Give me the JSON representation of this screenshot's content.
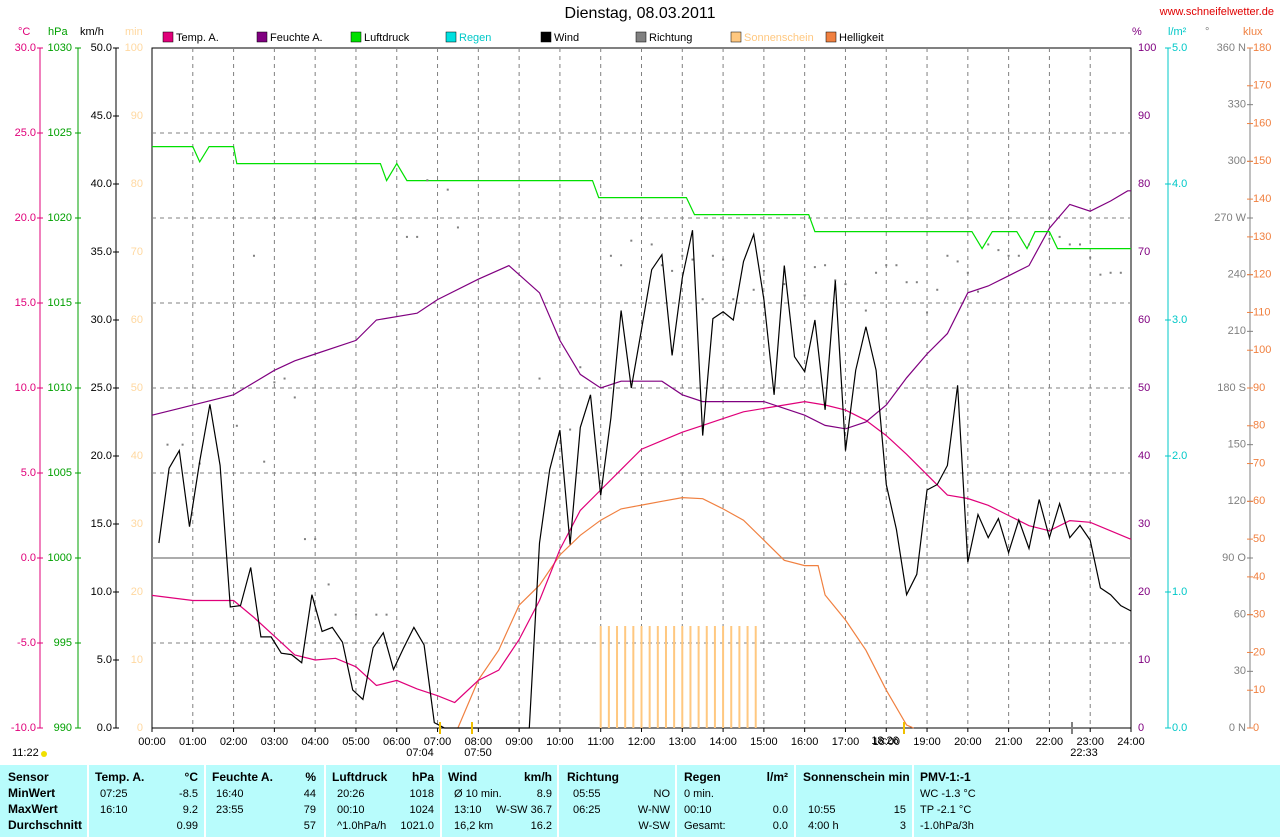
{
  "chart_data": {
    "type": "line",
    "title": "Dienstag, 08.03.2011",
    "source": "www.schneifelwetter.de",
    "time": "11:22",
    "annotations": [
      "07:04",
      "07:50",
      "18:26",
      "22:33"
    ],
    "grid": true,
    "xlim": [
      0,
      24
    ],
    "xticks": [
      {
        "value": 0,
        "label": "00:00"
      },
      {
        "value": 1,
        "label": "01:00"
      },
      {
        "value": 2,
        "label": "02:00"
      },
      {
        "value": 3,
        "label": "03:00"
      },
      {
        "value": 4,
        "label": "04:00"
      },
      {
        "value": 5,
        "label": "05:00"
      },
      {
        "value": 6,
        "label": "06:00"
      },
      {
        "value": 7,
        "label": "07:00"
      },
      {
        "value": 8,
        "label": "08:00"
      },
      {
        "value": 9,
        "label": "09:00"
      },
      {
        "value": 10,
        "label": "10:00"
      },
      {
        "value": 11,
        "label": "11:00"
      },
      {
        "value": 12,
        "label": "12:00"
      },
      {
        "value": 13,
        "label": "13:00"
      },
      {
        "value": 14,
        "label": "14:00"
      },
      {
        "value": 15,
        "label": "15:00"
      },
      {
        "value": 16,
        "label": "16:00"
      },
      {
        "value": 17,
        "label": "17:00"
      },
      {
        "value": 18,
        "label": "18:00"
      },
      {
        "value": 19,
        "label": "19:00"
      },
      {
        "value": 20,
        "label": "20:00"
      },
      {
        "value": 21,
        "label": "21:00"
      },
      {
        "value": 22,
        "label": "22:00"
      },
      {
        "value": 23,
        "label": "23:00"
      },
      {
        "value": 24,
        "label": "24:00"
      }
    ],
    "axes": {
      "temp": {
        "label": "°C",
        "color": "#e0007a",
        "lim": [
          -10,
          30
        ],
        "ticks": [
          {
            "value": -10,
            "label": "-10.0"
          },
          {
            "value": -5,
            "label": "-5.0"
          },
          {
            "value": 0,
            "label": "0.0"
          },
          {
            "value": 5,
            "label": "5.0"
          },
          {
            "value": 10,
            "label": "10.0"
          },
          {
            "value": 15,
            "label": "15.0"
          },
          {
            "value": 20,
            "label": "20.0"
          },
          {
            "value": 25,
            "label": "25.0"
          },
          {
            "value": 30,
            "label": "30.0"
          }
        ]
      },
      "hpa": {
        "label": "hPa",
        "color": "#00a000",
        "lim": [
          990,
          1030
        ],
        "ticks": [
          990,
          995,
          1000,
          1005,
          1010,
          1015,
          1020,
          1025,
          1030
        ]
      },
      "kmh": {
        "label": "km/h",
        "color": "#000000",
        "lim": [
          0,
          50
        ],
        "ticks": [
          {
            "value": 0,
            "label": "0.0"
          },
          {
            "value": 5,
            "label": "5.0"
          },
          {
            "value": 10,
            "label": "10.0"
          },
          {
            "value": 15,
            "label": "15.0"
          },
          {
            "value": 20,
            "label": "20.0"
          },
          {
            "value": 25,
            "label": "25.0"
          },
          {
            "value": 30,
            "label": "30.0"
          },
          {
            "value": 35,
            "label": "35.0"
          },
          {
            "value": 40,
            "label": "40.0"
          },
          {
            "value": 45,
            "label": "45.0"
          },
          {
            "value": 50,
            "label": "50.0"
          }
        ]
      },
      "min": {
        "label": "min",
        "color": "#ffd8a0",
        "lim": [
          0,
          100
        ],
        "ticks": [
          0,
          10,
          20,
          30,
          40,
          50,
          60,
          70,
          80,
          90,
          100
        ]
      },
      "pct": {
        "label": "%",
        "color": "#800080",
        "lim": [
          0,
          100
        ],
        "ticks": [
          0,
          10,
          20,
          30,
          40,
          50,
          60,
          70,
          80,
          90,
          100
        ]
      },
      "rain": {
        "label": "l/m²",
        "color": "#00c8c8",
        "lim": [
          0,
          5
        ],
        "ticks": [
          {
            "value": 0,
            "label": "0.0"
          },
          {
            "value": 1,
            "label": "1.0"
          },
          {
            "value": 2,
            "label": "2.0"
          },
          {
            "value": 3,
            "label": "3.0"
          },
          {
            "value": 4,
            "label": "4.0"
          },
          {
            "value": 5,
            "label": "5.0"
          }
        ]
      },
      "dir": {
        "label": "°",
        "color": "#808080",
        "lim": [
          0,
          360
        ],
        "ticks": [
          {
            "value": 0,
            "label": "0 N"
          },
          30,
          60,
          {
            "value": 90,
            "label": "90 O"
          },
          120,
          150,
          {
            "value": 180,
            "label": "180 S"
          },
          210,
          240,
          {
            "value": 270,
            "label": "270 W"
          },
          300,
          330,
          {
            "value": 360,
            "label": "360 N"
          }
        ]
      },
      "klux": {
        "label": "klux",
        "color": "#f08040",
        "lim": [
          0,
          180
        ],
        "ticks": [
          0,
          10,
          20,
          30,
          40,
          50,
          60,
          70,
          80,
          90,
          100,
          110,
          120,
          130,
          140,
          150,
          160,
          170,
          180
        ]
      }
    },
    "series": [
      {
        "name": "Temp. A.",
        "color": "#e0007a",
        "axis": "temp",
        "style": "line",
        "x": [
          0,
          1,
          2,
          2.5,
          3,
          3.5,
          4,
          4.5,
          5,
          5.5,
          6,
          6.5,
          7,
          7.42,
          8,
          8.5,
          9,
          9.5,
          10,
          10.5,
          11,
          11.5,
          12,
          12.5,
          13,
          13.5,
          14,
          14.5,
          15,
          15.5,
          16,
          16.5,
          17,
          17.5,
          18,
          18.5,
          19,
          19.5,
          20,
          20.5,
          21,
          21.5,
          22,
          22.5,
          23,
          23.5,
          24
        ],
        "values": [
          -2.2,
          -2.5,
          -2.5,
          -3.5,
          -4.6,
          -5.7,
          -6,
          -5.9,
          -6.4,
          -7.5,
          -7.2,
          -7.7,
          -8.1,
          -8.5,
          -7.2,
          -6.6,
          -4.8,
          -2.5,
          0.5,
          2.8,
          4,
          5.2,
          6.4,
          6.9,
          7.4,
          7.8,
          8.2,
          8.6,
          8.8,
          9,
          9.2,
          9,
          8.7,
          8.1,
          7.2,
          6.1,
          4.9,
          3.7,
          3.5,
          3.1,
          2.5,
          1.9,
          1.6,
          2.2,
          2.1,
          1.6,
          1.1
        ]
      },
      {
        "name": "Feuchte A.",
        "color": "#800080",
        "axis": "pct",
        "style": "line",
        "x": [
          0,
          0.67,
          2,
          3,
          3.5,
          4,
          5,
          5.5,
          6.5,
          7,
          8,
          8.75,
          9.5,
          10,
          10.5,
          11,
          11.5,
          12.5,
          13,
          13.5,
          15,
          16,
          16.5,
          17,
          17.5,
          18,
          18.5,
          19,
          19.5,
          20,
          20.5,
          21,
          21.5,
          22,
          22.5,
          23,
          23.5,
          23.92,
          24
        ],
        "values": [
          46,
          47,
          49,
          52.6,
          54,
          55,
          57,
          60,
          61,
          63,
          66,
          68,
          64,
          57,
          52,
          50,
          51,
          51,
          49,
          48,
          48,
          46,
          44.5,
          44,
          45,
          47.5,
          51.5,
          55,
          58,
          64,
          65,
          66.5,
          68,
          73.5,
          77,
          76,
          77.5,
          79,
          79
        ]
      },
      {
        "name": "Luftdruck",
        "color": "#00e000",
        "axis": "hpa",
        "style": "line",
        "x": [
          0,
          1,
          1.17,
          1.4,
          2,
          2.08,
          5.6,
          5.75,
          6,
          6.25,
          10.8,
          10.95,
          13.1,
          13.3,
          16.1,
          16.25,
          20.1,
          20.35,
          20.6,
          21.2,
          21.45,
          21.65,
          22,
          22.2,
          24
        ],
        "values": [
          1024.2,
          1024.2,
          1023.3,
          1024.2,
          1024.2,
          1023.2,
          1023.2,
          1022.2,
          1023.2,
          1022.2,
          1022.2,
          1021.2,
          1021.2,
          1020.2,
          1020.2,
          1019.2,
          1019.2,
          1018.2,
          1019.2,
          1019.2,
          1018.2,
          1019.2,
          1019.2,
          1018.2,
          1018.2
        ]
      },
      {
        "name": "Regen",
        "color": "#00e0e0",
        "axis": "rain",
        "style": "line"
      },
      {
        "name": "Wind",
        "color": "#000000",
        "axis": "kmh",
        "style": "line",
        "x": [
          0.17,
          0.42,
          0.67,
          0.92,
          1.17,
          1.42,
          1.67,
          1.92,
          2.17,
          2.42,
          2.67,
          2.92,
          3.17,
          3.42,
          3.67,
          3.92,
          4.17,
          4.42,
          4.67,
          4.92,
          5.17,
          5.42,
          5.67,
          5.92,
          6.17,
          6.42,
          6.67,
          6.92,
          7.17,
          9.25,
          9.5,
          9.75,
          10,
          10.25,
          10.5,
          10.75,
          11,
          11.25,
          11.5,
          11.75,
          12,
          12.25,
          12.5,
          12.75,
          13,
          13.25,
          13.5,
          13.75,
          14,
          14.25,
          14.5,
          14.75,
          15,
          15.25,
          15.5,
          15.75,
          16,
          16.25,
          16.5,
          16.75,
          17,
          17.25,
          17.5,
          17.75,
          18,
          18.25,
          18.5,
          18.75,
          19,
          19.25,
          19.5,
          19.75,
          20,
          20.25,
          20.5,
          20.75,
          21,
          21.25,
          21.5,
          21.75,
          22,
          22.25,
          22.5,
          22.75,
          23,
          23.25,
          23.5,
          23.75,
          24
        ],
        "values": [
          13.6,
          19.1,
          20.4,
          14.8,
          19.6,
          23.8,
          19.3,
          8.9,
          9,
          11.8,
          6.7,
          6.7,
          5.5,
          5.4,
          4.8,
          9.8,
          7.1,
          7.4,
          6.3,
          2.8,
          2.1,
          5.9,
          7,
          4.3,
          5.9,
          7.4,
          6.1,
          0.4,
          0,
          0,
          13.6,
          19,
          21.9,
          13.5,
          22.1,
          24.5,
          17.1,
          22.8,
          30.7,
          25,
          29.3,
          33.7,
          34.8,
          27.4,
          33.1,
          36.6,
          21.5,
          30.1,
          30.6,
          30,
          34.3,
          36.3,
          31.5,
          24.5,
          34,
          27.3,
          26.2,
          30,
          23.4,
          32.9,
          20.4,
          26.3,
          29.5,
          26.3,
          17.9,
          14.6,
          9.8,
          11.3,
          17.5,
          17.9,
          19.3,
          25.2,
          12.2,
          15.7,
          14,
          15.4,
          12.9,
          15.3,
          13.2,
          16.8,
          14,
          16.5,
          14,
          14.9,
          13.8,
          10.3,
          9.8,
          9,
          8.6
        ]
      },
      {
        "name": "Richtung",
        "color": "#808080",
        "axis": "dir",
        "style": "dots",
        "x": [
          0.38,
          0.75,
          1.17,
          2.08,
          2.5,
          2.75,
          3,
          3.25,
          3.5,
          3.75,
          4,
          4.33,
          4.5,
          5,
          5.5,
          5.75,
          6.25,
          6.5,
          6.75,
          7.25,
          7.5,
          9.5,
          10.25,
          10.5,
          11.25,
          11.5,
          11.75,
          12.25,
          12.5,
          12.75,
          13,
          13.25,
          13.5,
          13.75,
          14,
          14.25,
          14.75,
          15,
          15.5,
          16,
          16.25,
          16.5,
          16.75,
          17,
          17.5,
          17.75,
          18,
          18.25,
          18.5,
          18.75,
          19,
          19.25,
          19.5,
          19.75,
          20,
          20.25,
          20.5,
          20.75,
          21,
          21.25,
          21.5,
          22,
          22.25,
          22.5,
          22.75,
          23,
          23.25,
          23.5,
          23.75
        ],
        "values": [
          150,
          150,
          140,
          160,
          250,
          141,
          183,
          185,
          175,
          100,
          100,
          76,
          60,
          60,
          60,
          60,
          260,
          260,
          290,
          285,
          265,
          185,
          158,
          191,
          250,
          245,
          258,
          256,
          245,
          242,
          250,
          248,
          227,
          250,
          248,
          227,
          232,
          242,
          235,
          229,
          244,
          245,
          237,
          235,
          221,
          241,
          245,
          245,
          236,
          236,
          220,
          232,
          250,
          247,
          241,
          231,
          256,
          253,
          250,
          250,
          256,
          259,
          260,
          256,
          256,
          249,
          240,
          241,
          241
        ]
      },
      {
        "name": "Sonnenschein",
        "color": "#ffc880",
        "axis": "min",
        "style": "bars",
        "x": [
          11,
          11.2,
          11.4,
          11.6,
          11.8,
          12,
          12.2,
          12.4,
          12.6,
          12.8,
          13,
          13.2,
          13.4,
          13.6,
          13.8,
          14,
          14.2,
          14.4,
          14.6,
          14.8
        ],
        "values": [
          15,
          15,
          15,
          15,
          15,
          15,
          15,
          15,
          15,
          15,
          15,
          15,
          15,
          15,
          15,
          15,
          15,
          15,
          15,
          15
        ]
      },
      {
        "name": "Helligkeit",
        "color": "#f08040",
        "axis": "klux",
        "style": "line",
        "x": [
          7.5,
          8,
          8.5,
          9,
          9.5,
          10,
          10.5,
          11,
          11.5,
          12,
          12.5,
          13,
          13.5,
          14,
          14.5,
          15,
          15.5,
          16,
          16.33,
          16.5,
          17,
          17.5,
          18,
          18.5,
          18.67
        ],
        "values": [
          0,
          12.7,
          20.6,
          32.5,
          37.8,
          45.8,
          51,
          55,
          58,
          59,
          60,
          61,
          60.7,
          58,
          55,
          49.7,
          44.4,
          43,
          43,
          35.2,
          28.6,
          20.6,
          10,
          0.8,
          0
        ]
      }
    ]
  },
  "table": {
    "header": [
      "Sensor",
      "Temp. A.",
      "°C",
      "Feuchte A.",
      "%",
      "Luftdruck",
      "hPa",
      "Wind",
      "km/h",
      "Richtung",
      "Regen",
      "l/m²",
      "Sonnenschein min",
      "PMV-1:-1"
    ],
    "rows": [
      {
        "label": "MinWert",
        "cells": [
          "07:25",
          "-8.5",
          "16:40",
          "44",
          "20:26",
          "1018",
          "Ø 10 min.",
          "8.9",
          "05:55",
          "NO",
          "0 min.",
          null,
          null,
          null,
          "WC -1.3 °C"
        ]
      },
      {
        "label": "MaxWert",
        "cells": [
          "16:10",
          "9.2",
          "23:55",
          "79",
          "00:10",
          "1024",
          "13:10",
          "W-SW 36.7",
          "06:25",
          "W-NW",
          "00:10",
          "0.0",
          "10:55",
          "15",
          "TP -2.1 °C"
        ]
      },
      {
        "label": "Durchschnitt",
        "cells": [
          null,
          "0.99",
          null,
          "57",
          "^1.0hPa/h",
          "1021.0",
          "16,2 km",
          "16.2",
          null,
          "W-SW",
          "Gesamt:",
          "0.0",
          "4:00 h",
          "3",
          "-1.0hPa/3h"
        ]
      }
    ]
  }
}
